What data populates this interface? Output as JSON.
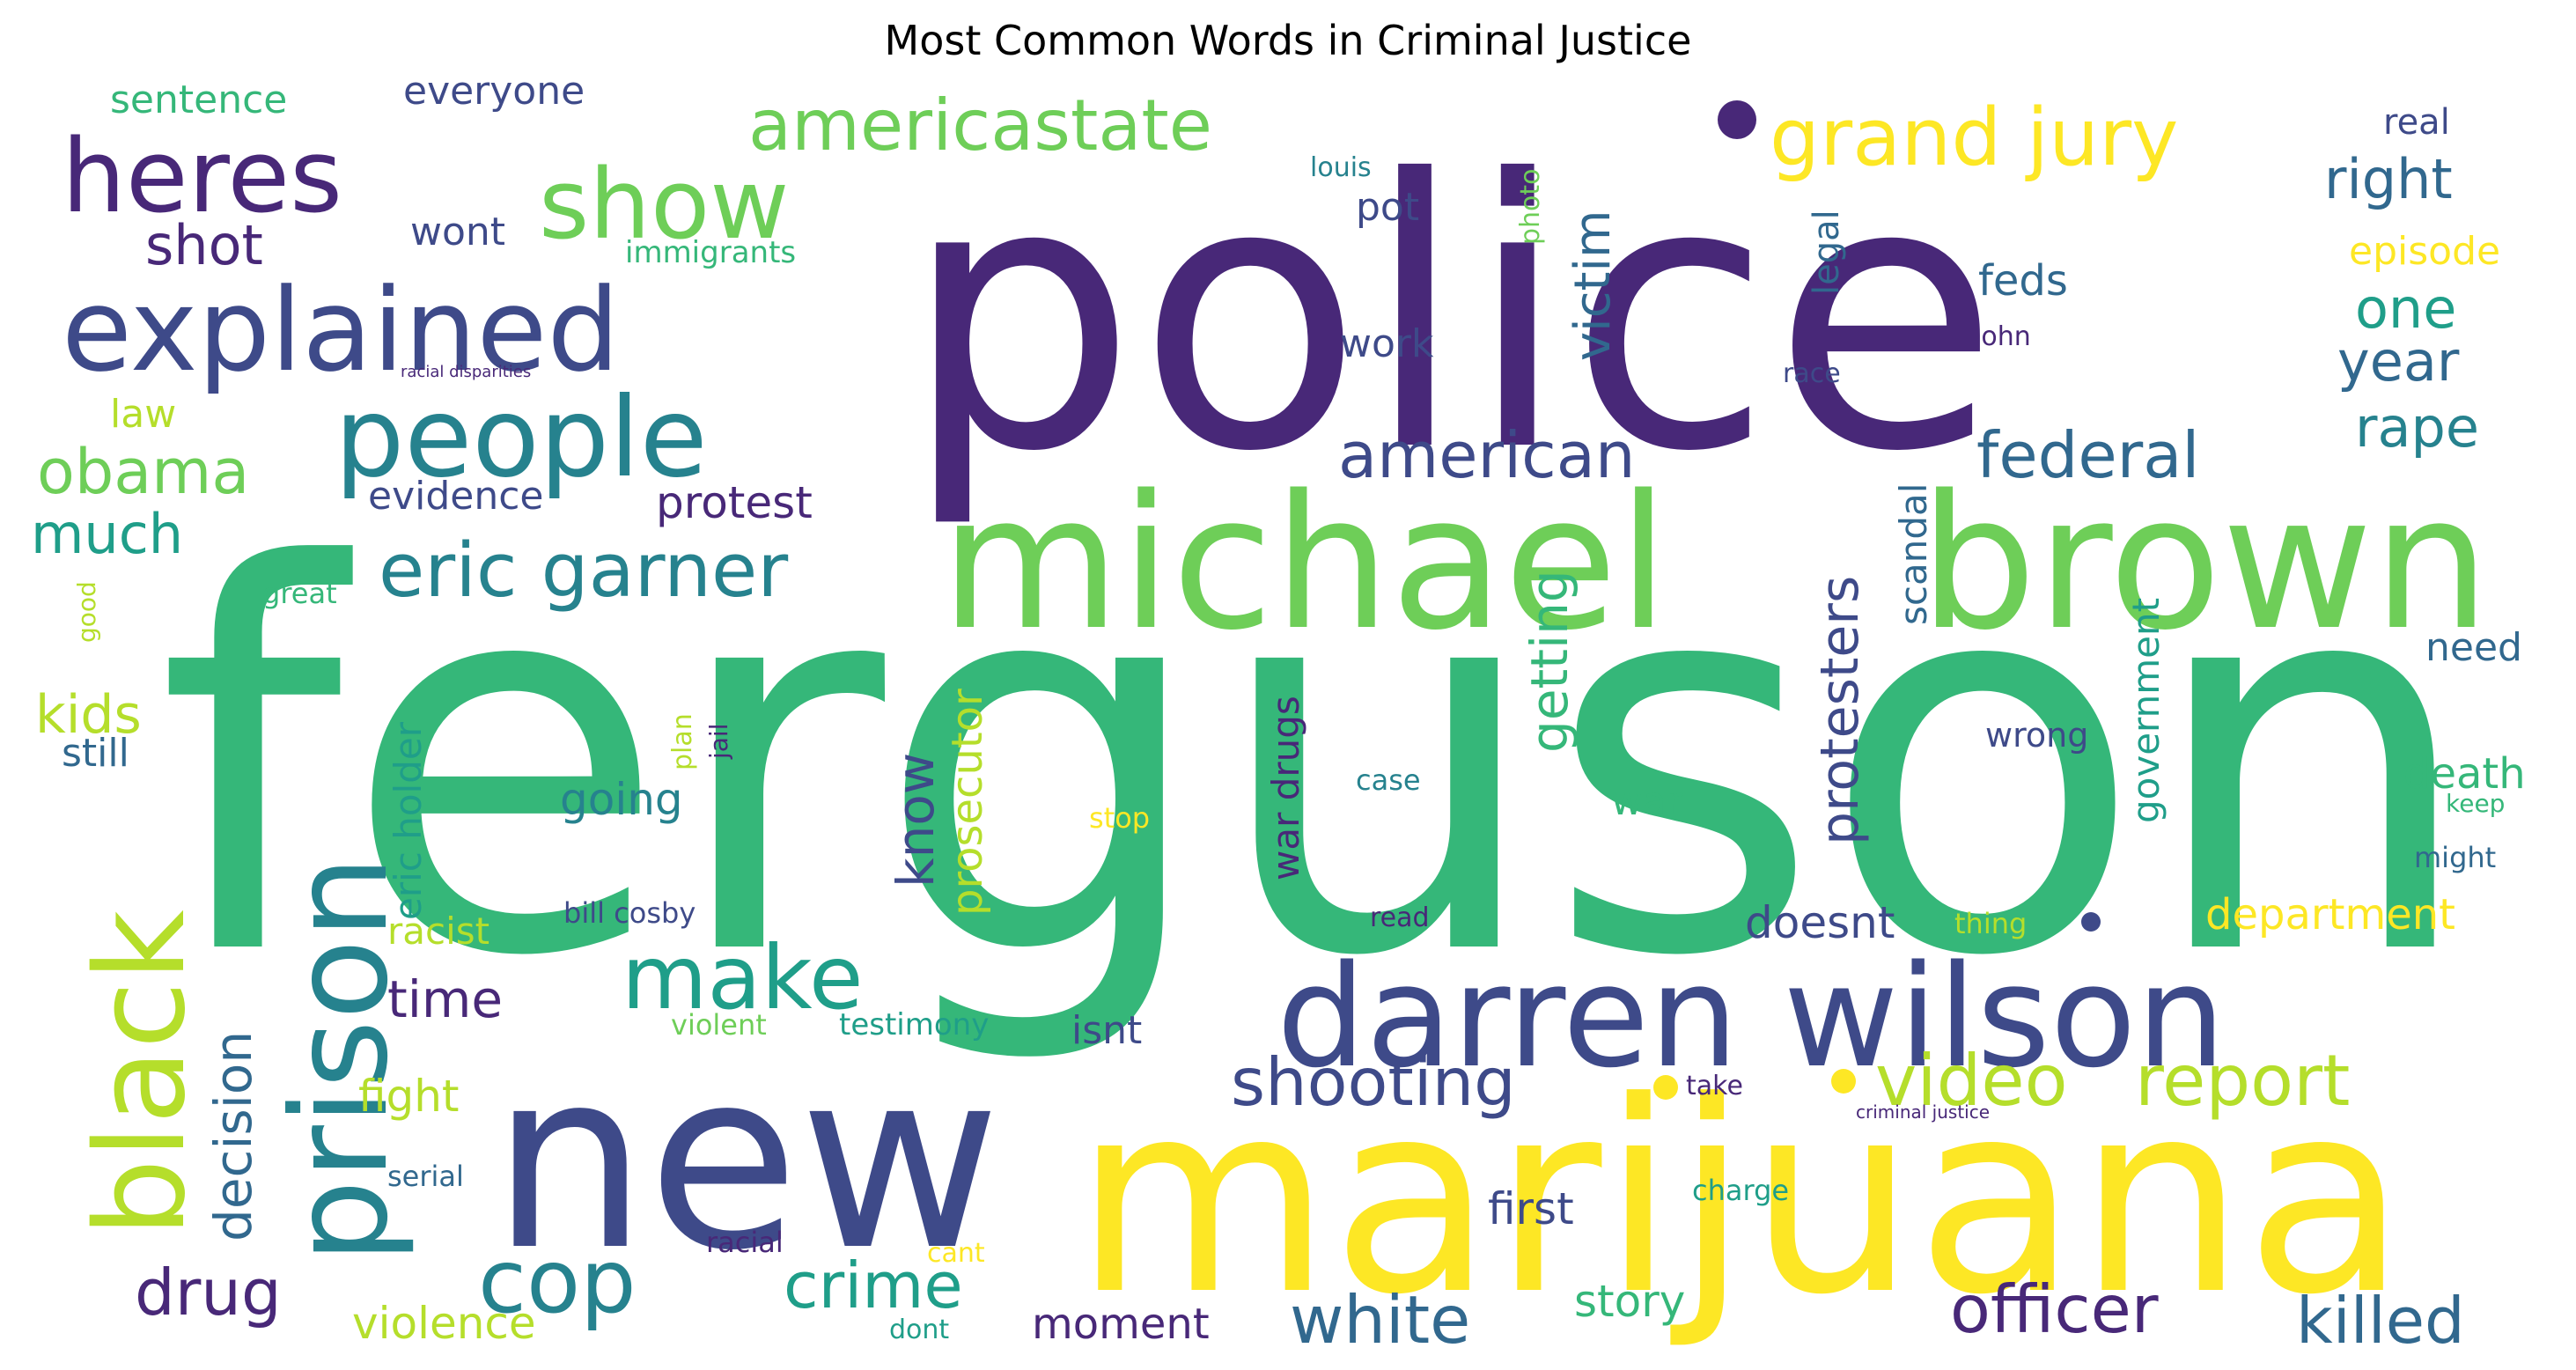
{
  "chart_data": {
    "type": "wordcloud",
    "title": "Most Common Words in Criminal Justice",
    "colormap": "viridis",
    "palette": {
      "dark_purple": "#482878",
      "indigo": "#3e4a89",
      "blue": "#31688e",
      "teal": "#26828e",
      "sea_green": "#1f9e89",
      "green": "#35b779",
      "light_green": "#6ece58",
      "yellow_green": "#b5de2b",
      "yellow": "#fde725"
    },
    "words": [
      {
        "text": "ferguson",
        "weight": 100,
        "color": "green",
        "orientation": "horizontal"
      },
      {
        "text": "police",
        "weight": 66,
        "color": "dark_purple",
        "orientation": "horizontal"
      },
      {
        "text": "marijuana",
        "weight": 46,
        "color": "yellow",
        "orientation": "horizontal"
      },
      {
        "text": "new",
        "weight": 44,
        "color": "indigo",
        "orientation": "horizontal"
      },
      {
        "text": "michael",
        "weight": 30,
        "color": "light_green",
        "orientation": "horizontal"
      },
      {
        "text": "brown",
        "weight": 30,
        "color": "light_green",
        "orientation": "horizontal"
      },
      {
        "text": "darren wilson",
        "weight": 24,
        "color": "indigo",
        "orientation": "horizontal"
      },
      {
        "text": "prison",
        "weight": 22,
        "color": "teal",
        "orientation": "vertical"
      },
      {
        "text": "black",
        "weight": 21,
        "color": "yellow_green",
        "orientation": "vertical"
      },
      {
        "text": "explained",
        "weight": 19,
        "color": "indigo",
        "orientation": "horizontal"
      },
      {
        "text": "people",
        "weight": 18,
        "color": "teal",
        "orientation": "horizontal"
      },
      {
        "text": "heres",
        "weight": 17,
        "color": "dark_purple",
        "orientation": "horizontal"
      },
      {
        "text": "show",
        "weight": 16,
        "color": "light_green",
        "orientation": "horizontal"
      },
      {
        "text": "make",
        "weight": 15,
        "color": "sea_green",
        "orientation": "horizontal"
      },
      {
        "text": "cop",
        "weight": 15,
        "color": "teal",
        "orientation": "horizontal"
      },
      {
        "text": "grand jury",
        "weight": 12,
        "color": "yellow",
        "orientation": "horizontal"
      },
      {
        "text": "eric garner",
        "weight": 11,
        "color": "teal",
        "orientation": "horizontal"
      },
      {
        "text": "americastate",
        "weight": 10,
        "color": "light_green",
        "orientation": "horizontal"
      },
      {
        "text": "video",
        "weight": 10,
        "color": "yellow_green",
        "orientation": "horizontal"
      },
      {
        "text": "report",
        "weight": 10,
        "color": "yellow_green",
        "orientation": "horizontal"
      },
      {
        "text": "shooting",
        "weight": 9,
        "color": "indigo",
        "orientation": "horizontal"
      },
      {
        "text": "officer",
        "weight": 9,
        "color": "dark_purple",
        "orientation": "horizontal"
      },
      {
        "text": "white",
        "weight": 9,
        "color": "blue",
        "orientation": "horizontal"
      },
      {
        "text": "killed",
        "weight": 9,
        "color": "blue",
        "orientation": "horizontal"
      },
      {
        "text": "american",
        "weight": 8,
        "color": "indigo",
        "orientation": "horizontal"
      },
      {
        "text": "federal",
        "weight": 8,
        "color": "blue",
        "orientation": "horizontal"
      },
      {
        "text": "obama",
        "weight": 8,
        "color": "light_green",
        "orientation": "horizontal"
      },
      {
        "text": "crime",
        "weight": 8,
        "color": "sea_green",
        "orientation": "horizontal"
      },
      {
        "text": "drug",
        "weight": 8,
        "color": "dark_purple",
        "orientation": "horizontal"
      },
      {
        "text": "protesters",
        "weight": 8,
        "color": "indigo",
        "orientation": "vertical"
      },
      {
        "text": "decision",
        "weight": 7,
        "color": "blue",
        "orientation": "vertical"
      },
      {
        "text": "getting",
        "weight": 7,
        "color": "green",
        "orientation": "vertical"
      },
      {
        "text": "victim",
        "weight": 7,
        "color": "blue",
        "orientation": "vertical"
      },
      {
        "text": "know",
        "weight": 7,
        "color": "indigo",
        "orientation": "vertical"
      },
      {
        "text": "right",
        "weight": 7,
        "color": "blue",
        "orientation": "horizontal"
      },
      {
        "text": "one",
        "weight": 7,
        "color": "sea_green",
        "orientation": "horizontal"
      },
      {
        "text": "year",
        "weight": 7,
        "color": "blue",
        "orientation": "horizontal"
      },
      {
        "text": "rape",
        "weight": 7,
        "color": "teal",
        "orientation": "horizontal"
      },
      {
        "text": "shot",
        "weight": 7,
        "color": "dark_purple",
        "orientation": "horizontal"
      },
      {
        "text": "much",
        "weight": 7,
        "color": "sea_green",
        "orientation": "horizontal"
      },
      {
        "text": "kids",
        "weight": 6,
        "color": "yellow_green",
        "orientation": "horizontal"
      },
      {
        "text": "time",
        "weight": 6,
        "color": "dark_purple",
        "orientation": "horizontal"
      },
      {
        "text": "prosecutor",
        "weight": 5,
        "color": "yellow_green",
        "orientation": "vertical"
      },
      {
        "text": "government",
        "weight": 5,
        "color": "sea_green",
        "orientation": "vertical"
      },
      {
        "text": "war drugs",
        "weight": 5,
        "color": "dark_purple",
        "orientation": "vertical"
      },
      {
        "text": "department",
        "weight": 5,
        "color": "yellow",
        "orientation": "horizontal"
      },
      {
        "text": "protest",
        "weight": 5,
        "color": "dark_purple",
        "orientation": "horizontal"
      },
      {
        "text": "going",
        "weight": 5,
        "color": "teal",
        "orientation": "horizontal"
      },
      {
        "text": "doesnt",
        "weight": 5,
        "color": "indigo",
        "orientation": "horizontal"
      },
      {
        "text": "first",
        "weight": 5,
        "color": "indigo",
        "orientation": "horizontal"
      },
      {
        "text": "moment",
        "weight": 5,
        "color": "dark_purple",
        "orientation": "horizontal"
      },
      {
        "text": "fight",
        "weight": 5,
        "color": "yellow_green",
        "orientation": "horizontal"
      },
      {
        "text": "violence",
        "weight": 5,
        "color": "yellow_green",
        "orientation": "horizontal"
      },
      {
        "text": "story",
        "weight": 5,
        "color": "green",
        "orientation": "horizontal"
      },
      {
        "text": "death",
        "weight": 5,
        "color": "green",
        "orientation": "horizontal"
      },
      {
        "text": "feds",
        "weight": 5,
        "color": "blue",
        "orientation": "horizontal"
      },
      {
        "text": "episode",
        "weight": 5,
        "color": "yellow",
        "orientation": "horizontal"
      },
      {
        "text": "scandal",
        "weight": 5,
        "color": "blue",
        "orientation": "vertical"
      },
      {
        "text": "eric holder",
        "weight": 4,
        "color": "sea_green",
        "orientation": "vertical"
      },
      {
        "text": "legal",
        "weight": 4,
        "color": "blue",
        "orientation": "vertical"
      },
      {
        "text": "wont",
        "weight": 4,
        "color": "indigo",
        "orientation": "horizontal"
      },
      {
        "text": "pot",
        "weight": 4,
        "color": "indigo",
        "orientation": "horizontal"
      },
      {
        "text": "work",
        "weight": 4,
        "color": "indigo",
        "orientation": "horizontal"
      },
      {
        "text": "evidence",
        "weight": 4,
        "color": "indigo",
        "orientation": "horizontal"
      },
      {
        "text": "law",
        "weight": 4,
        "color": "yellow_green",
        "orientation": "horizontal"
      },
      {
        "text": "still",
        "weight": 4,
        "color": "blue",
        "orientation": "horizontal"
      },
      {
        "text": "sentence",
        "weight": 4,
        "color": "green",
        "orientation": "horizontal"
      },
      {
        "text": "everyone",
        "weight": 4,
        "color": "indigo",
        "orientation": "horizontal"
      },
      {
        "text": "racist",
        "weight": 4,
        "color": "yellow_green",
        "orientation": "horizontal"
      },
      {
        "text": "isnt",
        "weight": 4,
        "color": "indigo",
        "orientation": "horizontal"
      },
      {
        "text": "need",
        "weight": 4,
        "color": "blue",
        "orientation": "horizontal"
      },
      {
        "text": "war",
        "weight": 4,
        "color": "green",
        "orientation": "horizontal"
      },
      {
        "text": "real",
        "weight": 4,
        "color": "indigo",
        "orientation": "horizontal"
      },
      {
        "text": "wrong",
        "weight": 3,
        "color": "indigo",
        "orientation": "horizontal"
      },
      {
        "text": "immigrants",
        "weight": 3,
        "color": "green",
        "orientation": "horizontal"
      },
      {
        "text": "testimony",
        "weight": 3,
        "color": "sea_green",
        "orientation": "horizontal"
      },
      {
        "text": "violent",
        "weight": 3,
        "color": "light_green",
        "orientation": "horizontal"
      },
      {
        "text": "bill cosby",
        "weight": 3,
        "color": "indigo",
        "orientation": "horizontal"
      },
      {
        "text": "great",
        "weight": 3,
        "color": "green",
        "orientation": "horizontal"
      },
      {
        "text": "serial",
        "weight": 3,
        "color": "blue",
        "orientation": "horizontal"
      },
      {
        "text": "racial",
        "weight": 3,
        "color": "dark_purple",
        "orientation": "horizontal"
      },
      {
        "text": "cant",
        "weight": 3,
        "color": "yellow",
        "orientation": "horizontal"
      },
      {
        "text": "dont",
        "weight": 3,
        "color": "sea_green",
        "orientation": "horizontal"
      },
      {
        "text": "louis",
        "weight": 3,
        "color": "teal",
        "orientation": "horizontal"
      },
      {
        "text": "photo",
        "weight": 3,
        "color": "light_green",
        "orientation": "vertical"
      },
      {
        "text": "plan",
        "weight": 3,
        "color": "yellow_green",
        "orientation": "vertical"
      },
      {
        "text": "jail",
        "weight": 3,
        "color": "dark_purple",
        "orientation": "vertical"
      },
      {
        "text": "good",
        "weight": 3,
        "color": "yellow_green",
        "orientation": "vertical"
      },
      {
        "text": "john",
        "weight": 3,
        "color": "dark_purple",
        "orientation": "horizontal"
      },
      {
        "text": "race",
        "weight": 3,
        "color": "indigo",
        "orientation": "horizontal"
      },
      {
        "text": "case",
        "weight": 3,
        "color": "teal",
        "orientation": "horizontal"
      },
      {
        "text": "stop",
        "weight": 3,
        "color": "yellow",
        "orientation": "horizontal"
      },
      {
        "text": "read",
        "weight": 3,
        "color": "dark_purple",
        "orientation": "horizontal"
      },
      {
        "text": "take",
        "weight": 3,
        "color": "dark_purple",
        "orientation": "horizontal"
      },
      {
        "text": "charge",
        "weight": 3,
        "color": "sea_green",
        "orientation": "horizontal"
      },
      {
        "text": "thing",
        "weight": 3,
        "color": "yellow_green",
        "orientation": "horizontal"
      },
      {
        "text": "keep",
        "weight": 3,
        "color": "green",
        "orientation": "horizontal"
      },
      {
        "text": "might",
        "weight": 3,
        "color": "blue",
        "orientation": "horizontal"
      },
      {
        "text": "criminal justice",
        "weight": 2,
        "color": "dark_purple",
        "orientation": "horizontal"
      },
      {
        "text": "racial disparities",
        "weight": 2,
        "color": "dark_purple",
        "orientation": "horizontal"
      }
    ]
  }
}
